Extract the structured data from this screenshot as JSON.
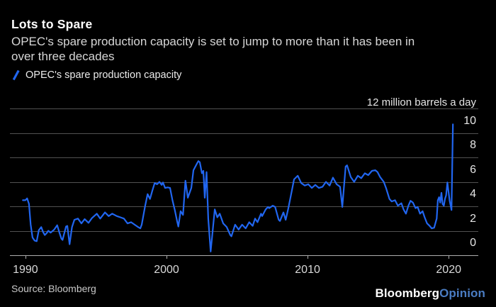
{
  "header": {
    "title": "Lots to Spare",
    "subtitle_line1": "OPEC's spare production capacity is set to jump to more than it has been in",
    "subtitle_line2": "over three decades"
  },
  "legend": {
    "label": "OPEC's spare production capacity"
  },
  "footer": {
    "source": "Source: Bloomberg",
    "logo_part1": "Bloomberg",
    "logo_part2": "Opinion"
  },
  "colors": {
    "background": "#000000",
    "line": "#2166f0",
    "grid": "#515151",
    "baseline": "#adadad",
    "title_text": "#ffffff",
    "logo_accent": "#4a7cc2"
  },
  "chart_data": {
    "type": "line",
    "title": "Lots to Spare",
    "xlabel": "",
    "ylabel": "million barrels a day",
    "y_max_label": "12 million barrels a day",
    "unit": "million barrels a day",
    "grid": true,
    "legend_position": "top-left",
    "xlim": [
      1988.9,
      2022.1
    ],
    "ylim": [
      0,
      12
    ],
    "x_ticks": [
      1990,
      2000,
      2010,
      2020
    ],
    "y_ticks": [
      0,
      2,
      4,
      6,
      8,
      10
    ],
    "grid_values": [
      2,
      4,
      6,
      8,
      10,
      12
    ],
    "series": [
      {
        "name": "OPEC's spare production capacity",
        "color": "#2166f0",
        "points": [
          [
            1989.82,
            4.5
          ],
          [
            1990.0,
            4.5
          ],
          [
            1990.12,
            4.65
          ],
          [
            1990.25,
            4.2
          ],
          [
            1990.37,
            2.5
          ],
          [
            1990.5,
            1.45
          ],
          [
            1990.65,
            1.2
          ],
          [
            1990.8,
            1.15
          ],
          [
            1990.95,
            2.05
          ],
          [
            1991.12,
            2.3
          ],
          [
            1991.25,
            1.9
          ],
          [
            1991.37,
            1.65
          ],
          [
            1991.5,
            1.8
          ],
          [
            1991.62,
            2.0
          ],
          [
            1991.79,
            1.85
          ],
          [
            1992.04,
            2.1
          ],
          [
            1992.25,
            2.45
          ],
          [
            1992.42,
            1.8
          ],
          [
            1992.55,
            1.35
          ],
          [
            1992.63,
            1.25
          ],
          [
            1992.88,
            2.35
          ],
          [
            1992.97,
            2.4
          ],
          [
            1993.13,
            0.9
          ],
          [
            1993.3,
            2.3
          ],
          [
            1993.47,
            2.9
          ],
          [
            1993.72,
            3.0
          ],
          [
            1993.97,
            2.6
          ],
          [
            1994.2,
            2.95
          ],
          [
            1994.47,
            2.65
          ],
          [
            1994.72,
            3.05
          ],
          [
            1995.06,
            3.4
          ],
          [
            1995.3,
            3.0
          ],
          [
            1995.64,
            3.5
          ],
          [
            1995.9,
            3.2
          ],
          [
            1996.15,
            3.4
          ],
          [
            1996.48,
            3.2
          ],
          [
            1996.73,
            3.1
          ],
          [
            1996.98,
            3.0
          ],
          [
            1997.24,
            2.6
          ],
          [
            1997.49,
            2.7
          ],
          [
            1997.74,
            2.5
          ],
          [
            1997.99,
            2.3
          ],
          [
            1998.14,
            2.2
          ],
          [
            1998.24,
            2.5
          ],
          [
            1998.49,
            4.05
          ],
          [
            1998.66,
            5.0
          ],
          [
            1998.83,
            4.6
          ],
          [
            1999.0,
            5.3
          ],
          [
            1999.16,
            5.9
          ],
          [
            1999.33,
            5.8
          ],
          [
            1999.5,
            6.0
          ],
          [
            1999.66,
            5.75
          ],
          [
            1999.75,
            5.95
          ],
          [
            1999.9,
            5.5
          ],
          [
            2000.08,
            5.55
          ],
          [
            2000.25,
            5.5
          ],
          [
            2000.42,
            4.5
          ],
          [
            2000.59,
            3.7
          ],
          [
            2000.75,
            2.8
          ],
          [
            2000.84,
            2.35
          ],
          [
            2001.0,
            3.6
          ],
          [
            2001.17,
            3.3
          ],
          [
            2001.34,
            6.1
          ],
          [
            2001.51,
            4.7
          ],
          [
            2001.76,
            5.5
          ],
          [
            2001.91,
            6.95
          ],
          [
            2002.16,
            7.5
          ],
          [
            2002.26,
            7.7
          ],
          [
            2002.36,
            7.6
          ],
          [
            2002.51,
            6.7
          ],
          [
            2002.61,
            6.9
          ],
          [
            2002.71,
            4.7
          ],
          [
            2002.84,
            6.8
          ],
          [
            2002.96,
            3.0
          ],
          [
            2003.13,
            0.3
          ],
          [
            2003.42,
            3.75
          ],
          [
            2003.6,
            3.1
          ],
          [
            2003.77,
            3.4
          ],
          [
            2004.02,
            2.6
          ],
          [
            2004.27,
            2.3
          ],
          [
            2004.52,
            1.65
          ],
          [
            2004.6,
            1.55
          ],
          [
            2004.86,
            2.5
          ],
          [
            2005.11,
            2.1
          ],
          [
            2005.36,
            2.5
          ],
          [
            2005.61,
            2.2
          ],
          [
            2005.86,
            2.7
          ],
          [
            2006.11,
            2.4
          ],
          [
            2006.28,
            3.0
          ],
          [
            2006.45,
            2.7
          ],
          [
            2006.7,
            3.4
          ],
          [
            2006.78,
            3.2
          ],
          [
            2007.03,
            3.75
          ],
          [
            2007.2,
            3.95
          ],
          [
            2007.28,
            3.85
          ],
          [
            2007.53,
            4.05
          ],
          [
            2007.7,
            3.95
          ],
          [
            2007.95,
            2.9
          ],
          [
            2008.04,
            2.8
          ],
          [
            2008.29,
            3.5
          ],
          [
            2008.45,
            2.9
          ],
          [
            2008.62,
            3.75
          ],
          [
            2008.87,
            5.2
          ],
          [
            2009.04,
            6.2
          ],
          [
            2009.3,
            6.5
          ],
          [
            2009.55,
            5.9
          ],
          [
            2009.8,
            5.7
          ],
          [
            2010.05,
            5.8
          ],
          [
            2010.3,
            5.5
          ],
          [
            2010.55,
            5.75
          ],
          [
            2010.8,
            5.5
          ],
          [
            2011.06,
            5.6
          ],
          [
            2011.3,
            6.0
          ],
          [
            2011.56,
            5.7
          ],
          [
            2011.8,
            6.35
          ],
          [
            2012.06,
            5.8
          ],
          [
            2012.3,
            5.6
          ],
          [
            2012.46,
            3.95
          ],
          [
            2012.7,
            7.25
          ],
          [
            2012.8,
            7.35
          ],
          [
            2013.06,
            6.4
          ],
          [
            2013.3,
            6.0
          ],
          [
            2013.56,
            6.5
          ],
          [
            2013.8,
            6.3
          ],
          [
            2014.06,
            6.7
          ],
          [
            2014.3,
            6.55
          ],
          [
            2014.56,
            6.9
          ],
          [
            2014.8,
            6.95
          ],
          [
            2014.96,
            6.8
          ],
          [
            2015.14,
            6.4
          ],
          [
            2015.4,
            6.0
          ],
          [
            2015.56,
            5.5
          ],
          [
            2015.8,
            4.6
          ],
          [
            2015.96,
            4.4
          ],
          [
            2016.2,
            4.5
          ],
          [
            2016.4,
            4.05
          ],
          [
            2016.65,
            4.25
          ],
          [
            2016.8,
            3.75
          ],
          [
            2016.97,
            3.4
          ],
          [
            2017.15,
            4.05
          ],
          [
            2017.3,
            4.45
          ],
          [
            2017.47,
            4.3
          ],
          [
            2017.65,
            3.85
          ],
          [
            2017.8,
            3.95
          ],
          [
            2017.97,
            3.4
          ],
          [
            2018.15,
            3.6
          ],
          [
            2018.3,
            3.1
          ],
          [
            2018.47,
            2.6
          ],
          [
            2018.65,
            2.4
          ],
          [
            2018.8,
            2.2
          ],
          [
            2018.97,
            2.25
          ],
          [
            2019.15,
            3.0
          ],
          [
            2019.23,
            4.5
          ],
          [
            2019.32,
            4.75
          ],
          [
            2019.4,
            4.3
          ],
          [
            2019.49,
            5.1
          ],
          [
            2019.57,
            4.2
          ],
          [
            2019.66,
            4.05
          ],
          [
            2019.74,
            4.6
          ],
          [
            2019.82,
            4.9
          ],
          [
            2019.91,
            5.95
          ],
          [
            2019.99,
            5.2
          ],
          [
            2020.07,
            4.45
          ],
          [
            2020.2,
            3.7
          ],
          [
            2020.3,
            10.7
          ]
        ]
      }
    ]
  }
}
